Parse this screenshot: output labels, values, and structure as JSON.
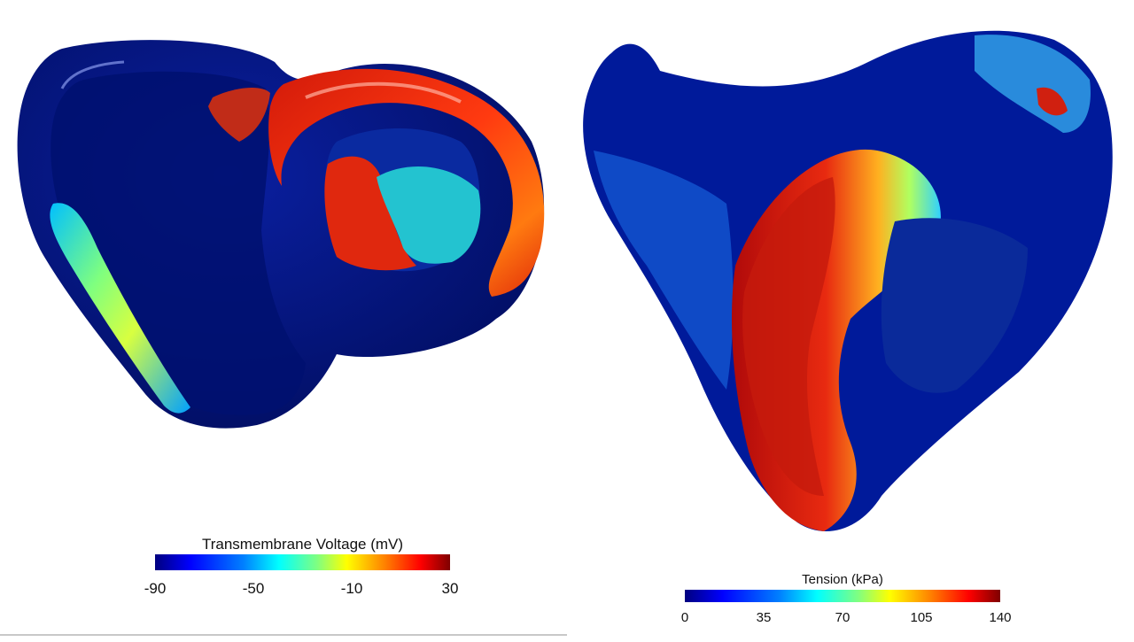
{
  "views": [
    {
      "id": "left",
      "name": "heart-voltage-view"
    },
    {
      "id": "right",
      "name": "heart-tension-view"
    }
  ],
  "colorbars": {
    "voltage": {
      "title": "Transmembrane Voltage (mV)",
      "ticks": [
        "-90",
        "-50",
        "-10",
        "30"
      ],
      "range": [
        -90,
        30
      ],
      "colormap": [
        "#00007f",
        "#0000ff",
        "#0080ff",
        "#00ffff",
        "#80ff80",
        "#ffff00",
        "#ff8000",
        "#ff0000",
        "#7f0000"
      ]
    },
    "tension": {
      "title": "Tension (kPa)",
      "ticks": [
        "0",
        "35",
        "70",
        "105",
        "140"
      ],
      "range": [
        0,
        140
      ],
      "colormap": [
        "#00007f",
        "#0000ff",
        "#0080ff",
        "#00ffff",
        "#80ff80",
        "#ffff00",
        "#ff8000",
        "#ff0000",
        "#7f0000"
      ]
    }
  }
}
